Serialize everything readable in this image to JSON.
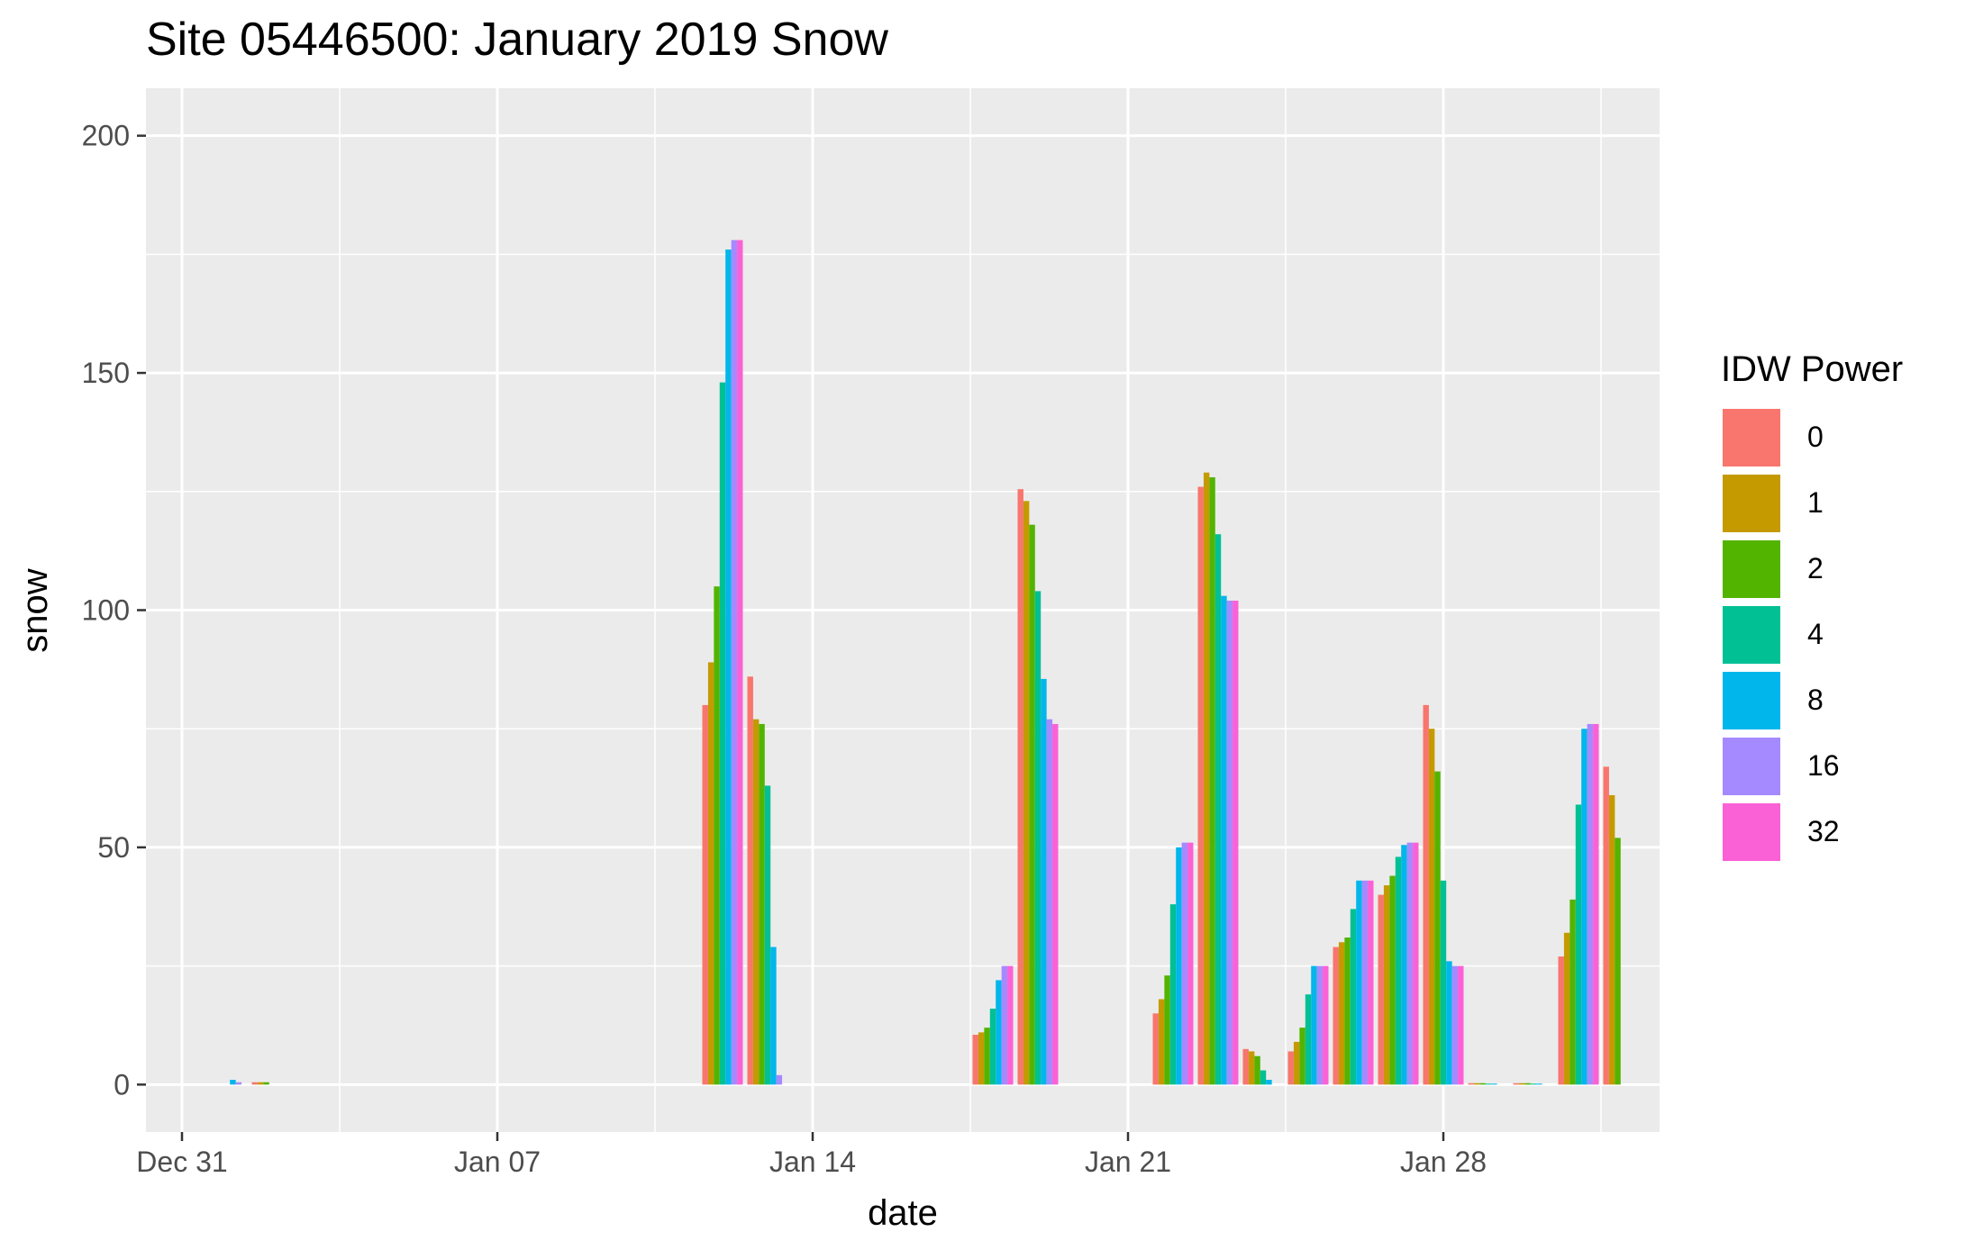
{
  "chart_data": {
    "type": "bar",
    "title": "Site 05446500: January 2019 Snow",
    "xlabel": "date",
    "ylabel": "snow",
    "ylim": [
      -10,
      210
    ],
    "xlim": [
      "2018-12-31",
      "2019-02-01"
    ],
    "y_ticks": [
      0,
      50,
      100,
      150,
      200
    ],
    "x_ticks": [
      {
        "date": "2018-12-31",
        "label": "Dec 31"
      },
      {
        "date": "2019-01-07",
        "label": "Jan 07"
      },
      {
        "date": "2019-01-14",
        "label": "Jan 14"
      },
      {
        "date": "2019-01-21",
        "label": "Jan 21"
      },
      {
        "date": "2019-01-28",
        "label": "Jan 28"
      }
    ],
    "grid": true,
    "legend_position": "right",
    "legend_title": "IDW Power",
    "dates": [
      "2019-01-01",
      "2019-01-02",
      "2019-01-12",
      "2019-01-13",
      "2019-01-18",
      "2019-01-19",
      "2019-01-22",
      "2019-01-23",
      "2019-01-24",
      "2019-01-25",
      "2019-01-26",
      "2019-01-27",
      "2019-01-28",
      "2019-01-29",
      "2019-01-30",
      "2019-01-31",
      "2019-02-01"
    ],
    "series": [
      {
        "name": "0",
        "color": "#F8766D",
        "values": [
          0,
          0.5,
          80,
          86,
          10.5,
          125.5,
          15,
          126,
          7.5,
          7,
          29,
          40,
          80,
          0.3,
          0.3,
          27,
          67
        ]
      },
      {
        "name": "1",
        "color": "#C49A00",
        "values": [
          0,
          0.5,
          89,
          77,
          11,
          123,
          18,
          129,
          7,
          9,
          30,
          42,
          75,
          0.3,
          0.3,
          32,
          61
        ]
      },
      {
        "name": "2",
        "color": "#53B400",
        "values": [
          0,
          0.5,
          105,
          76,
          12,
          118,
          23,
          128,
          6,
          12,
          31,
          44,
          66,
          0.3,
          0.3,
          39,
          52
        ]
      },
      {
        "name": "4",
        "color": "#00C094",
        "values": [
          0,
          0,
          148,
          63,
          16,
          104,
          38,
          116,
          3,
          19,
          37,
          48,
          43,
          0.2,
          0.2,
          59,
          0
        ]
      },
      {
        "name": "8",
        "color": "#00B6EB",
        "values": [
          1,
          0,
          176,
          29,
          22,
          85.5,
          50,
          103,
          1,
          25,
          43,
          50.5,
          26,
          0.2,
          0.2,
          75,
          0
        ]
      },
      {
        "name": "16",
        "color": "#A58AFF",
        "values": [
          0.5,
          0,
          178,
          2,
          25,
          77,
          51,
          102,
          0,
          25,
          43,
          51,
          25,
          0,
          0,
          76,
          0
        ]
      },
      {
        "name": "32",
        "color": "#FB61D7",
        "values": [
          0,
          0,
          178,
          0,
          25,
          76,
          51,
          102,
          0,
          25,
          43,
          51,
          25,
          0,
          0,
          76,
          0
        ]
      }
    ]
  }
}
